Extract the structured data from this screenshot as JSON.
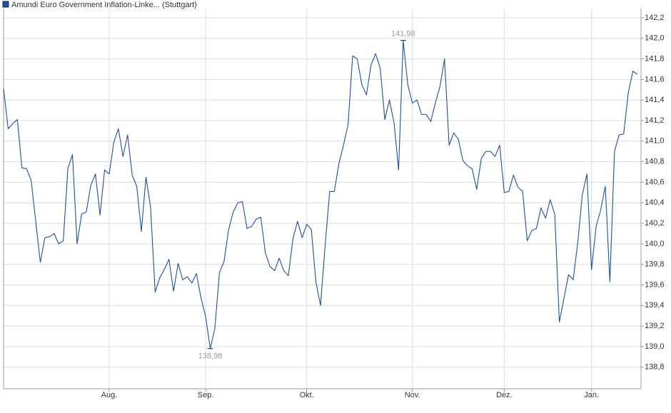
{
  "chart_data": {
    "type": "line",
    "categories": [
      null,
      null,
      null,
      null,
      null,
      null,
      null,
      null,
      null,
      null,
      null,
      null,
      null,
      null,
      null,
      null,
      null,
      null,
      null,
      null,
      null,
      null,
      null,
      "Aug.",
      null,
      null,
      null,
      null,
      null,
      null,
      null,
      null,
      null,
      null,
      null,
      null,
      null,
      null,
      null,
      null,
      null,
      null,
      null,
      null,
      "Sep.",
      null,
      null,
      null,
      null,
      null,
      null,
      null,
      null,
      null,
      null,
      null,
      null,
      null,
      null,
      null,
      null,
      null,
      null,
      null,
      null,
      null,
      "Okt.",
      null,
      null,
      null,
      null,
      null,
      null,
      null,
      null,
      null,
      null,
      null,
      null,
      null,
      null,
      null,
      null,
      null,
      null,
      null,
      null,
      null,
      null,
      "Nov.",
      null,
      null,
      null,
      null,
      null,
      null,
      null,
      null,
      null,
      null,
      null,
      null,
      null,
      null,
      null,
      null,
      null,
      null,
      null,
      "Dez.",
      null,
      null,
      null,
      null,
      null,
      null,
      null,
      null,
      null,
      null,
      null,
      null,
      null,
      null,
      null,
      null,
      null,
      null,
      "Jan.",
      null,
      null,
      null,
      null,
      null,
      null,
      null,
      null,
      null,
      null
    ],
    "series": [
      {
        "name": "Amundi Euro Government Inflation-Linke... (Stuttgart)",
        "color": "#1f4f9e",
        "values": [
          141.51,
          141.12,
          141.17,
          141.21,
          140.74,
          140.73,
          140.62,
          140.22,
          139.82,
          140.06,
          140.07,
          140.1,
          140.0,
          140.03,
          140.73,
          140.87,
          140.0,
          140.29,
          140.31,
          140.57,
          140.68,
          140.28,
          140.72,
          140.68,
          140.99,
          141.12,
          140.85,
          141.06,
          140.67,
          140.56,
          140.12,
          140.65,
          140.36,
          139.53,
          139.67,
          139.75,
          139.85,
          139.54,
          139.81,
          139.65,
          139.68,
          139.62,
          139.71,
          139.47,
          139.29,
          138.98,
          139.18,
          139.72,
          139.83,
          140.14,
          140.31,
          140.4,
          140.41,
          140.15,
          140.17,
          140.24,
          140.26,
          139.91,
          139.78,
          139.74,
          139.86,
          139.74,
          139.69,
          140.05,
          140.22,
          140.06,
          140.19,
          140.14,
          139.63,
          139.4,
          139.98,
          140.51,
          140.51,
          140.78,
          140.96,
          141.16,
          141.83,
          141.8,
          141.55,
          141.45,
          141.74,
          141.85,
          141.71,
          141.21,
          141.4,
          141.18,
          140.72,
          141.98,
          141.55,
          141.37,
          141.4,
          141.26,
          141.26,
          141.19,
          141.37,
          141.53,
          141.8,
          140.96,
          141.08,
          141.02,
          140.81,
          140.76,
          140.73,
          140.53,
          140.83,
          140.9,
          140.9,
          140.85,
          140.96,
          140.5,
          140.51,
          140.67,
          140.55,
          140.51,
          140.03,
          140.13,
          140.15,
          140.35,
          140.25,
          140.43,
          140.29,
          139.24,
          139.47,
          139.7,
          139.65,
          140.01,
          140.48,
          140.68,
          139.75,
          140.17,
          140.33,
          140.56,
          139.63,
          140.9,
          141.06,
          141.07,
          141.47,
          141.68,
          141.65
        ],
        "value_labels": [
          null,
          null,
          null,
          null,
          null,
          null,
          null,
          null,
          null,
          null,
          null,
          null,
          null,
          null,
          null,
          null,
          null,
          null,
          null,
          null,
          null,
          null,
          null,
          null,
          null,
          null,
          null,
          null,
          null,
          null,
          null,
          null,
          null,
          null,
          null,
          null,
          null,
          null,
          null,
          null,
          null,
          null,
          null,
          null,
          null,
          "138,98",
          null,
          null,
          null,
          null,
          null,
          null,
          null,
          null,
          null,
          null,
          null,
          null,
          null,
          null,
          null,
          null,
          null,
          null,
          null,
          null,
          null,
          null,
          null,
          null,
          null,
          null,
          null,
          null,
          null,
          null,
          null,
          null,
          null,
          null,
          null,
          null,
          null,
          null,
          null,
          null,
          null,
          "141,98",
          null,
          null,
          null,
          null,
          null,
          null,
          null,
          null,
          null,
          null,
          null,
          null,
          null,
          null,
          null,
          null,
          null,
          null,
          null,
          null,
          null,
          null,
          null,
          null,
          null,
          null,
          null,
          null,
          null,
          null,
          null,
          null,
          null,
          null,
          null,
          null,
          null,
          null,
          null,
          null,
          null,
          null,
          null,
          null,
          null,
          null,
          null,
          null,
          null,
          null,
          null
        ]
      }
    ],
    "ylim": [
      138.59,
      142.29
    ],
    "yticks": [
      {
        "value": 138.8,
        "label": "138,8"
      },
      {
        "value": 139.0,
        "label": "139,0"
      },
      {
        "value": 139.2,
        "label": "139,2"
      },
      {
        "value": 139.4,
        "label": "139,4"
      },
      {
        "value": 139.6,
        "label": "139,6"
      },
      {
        "value": 139.8,
        "label": "139,8"
      },
      {
        "value": 140.0,
        "label": "140,0"
      },
      {
        "value": 140.2,
        "label": "140,2"
      },
      {
        "value": 140.4,
        "label": "140,4"
      },
      {
        "value": 140.6,
        "label": "140,6"
      },
      {
        "value": 140.8,
        "label": "140,8"
      },
      {
        "value": 141.0,
        "label": "141,0"
      },
      {
        "value": 141.2,
        "label": "141,2"
      },
      {
        "value": 141.4,
        "label": "141,4"
      },
      {
        "value": 141.6,
        "label": "141,6"
      },
      {
        "value": 141.8,
        "label": "141,8"
      },
      {
        "value": 142.0,
        "label": "142,0"
      },
      {
        "value": 142.2,
        "label": "142,2"
      }
    ],
    "grid": true
  }
}
